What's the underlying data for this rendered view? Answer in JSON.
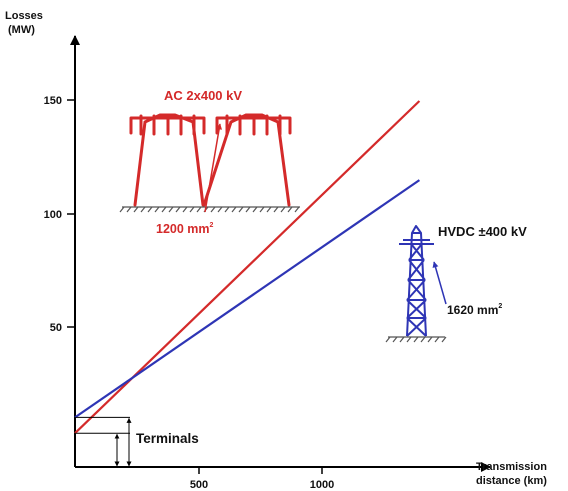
{
  "chart_data": {
    "type": "line",
    "ylabel_lines": [
      "Losses",
      "(MW)"
    ],
    "xlabel_lines": [
      "Transmission",
      "distance (km)"
    ],
    "xlim": [
      0,
      1500
    ],
    "ylim": [
      -10,
      175
    ],
    "x_ticks": [
      500,
      1000
    ],
    "y_ticks": [
      50,
      100,
      150
    ],
    "series": [
      {
        "name": "AC 2x400 kV",
        "color": "#d42a2a",
        "x": [
          0,
          1400
        ],
        "y": [
          3,
          150
        ]
      },
      {
        "name": "HVDC ±400 kV",
        "color": "#2e35b5",
        "x": [
          0,
          1400
        ],
        "y": [
          10,
          115
        ]
      }
    ],
    "annotations": {
      "terminals": "Terminals",
      "ac_label": "AC 2x400 kV",
      "ac_conductor": "1200 mm",
      "hvdc_label": "HVDC ±400 kV",
      "hvdc_conductor": "1620 mm",
      "superscript": "2"
    },
    "terminal_levels": {
      "ac": 3,
      "hvdc": 10
    },
    "colors": {
      "ac": "#d42a2a",
      "hvdc": "#2e35b5",
      "axis": "#000000",
      "ground": "#555555"
    }
  }
}
